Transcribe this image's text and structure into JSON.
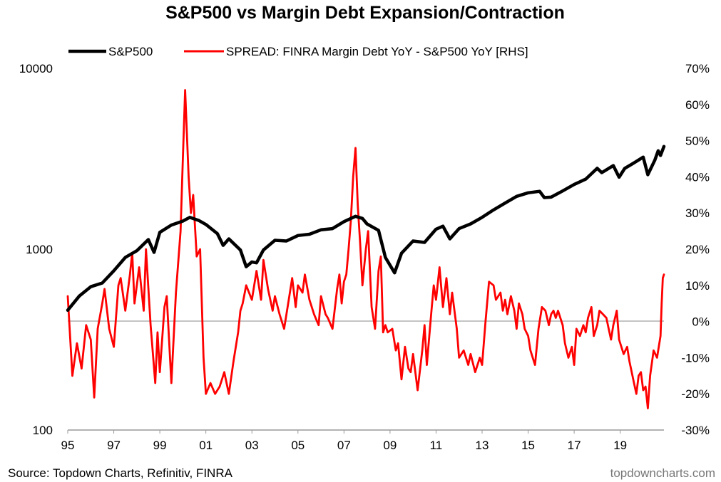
{
  "chart_data": {
    "type": "line",
    "title": "S&P500 vs Margin Debt Expansion/Contraction",
    "legend": {
      "placement": "top",
      "entries": [
        "S&P500",
        "SPREAD: FINRA Margin Debt YoY - S&P500 YoY [RHS]"
      ]
    },
    "x_axis": {
      "ticks": [
        "95",
        "97",
        "99",
        "01",
        "03",
        "05",
        "07",
        "09",
        "11",
        "13",
        "15",
        "17",
        "19"
      ],
      "range": [
        1995.0,
        2020.9
      ]
    },
    "y_left": {
      "scale": "log",
      "range": [
        100,
        10000
      ],
      "ticks": [
        "10000",
        "1000",
        "100"
      ]
    },
    "y_right": {
      "scale": "linear",
      "unit": "%",
      "range": [
        -30,
        70
      ],
      "ticks": [
        "70%",
        "60%",
        "50%",
        "40%",
        "30%",
        "20%",
        "10%",
        "0%",
        "-10%",
        "-20%",
        "-30%"
      ],
      "zero_line": true
    },
    "grid": false,
    "series": [
      {
        "name": "S&P500",
        "axis": "left",
        "color": "#000000",
        "points": [
          [
            1995.0,
            460
          ],
          [
            1995.5,
            550
          ],
          [
            1996.0,
            620
          ],
          [
            1996.5,
            650
          ],
          [
            1997.0,
            760
          ],
          [
            1997.5,
            900
          ],
          [
            1998.0,
            980
          ],
          [
            1998.5,
            1130
          ],
          [
            1998.75,
            960
          ],
          [
            1999.0,
            1240
          ],
          [
            1999.5,
            1360
          ],
          [
            2000.0,
            1430
          ],
          [
            2000.3,
            1500
          ],
          [
            2000.7,
            1440
          ],
          [
            2001.0,
            1370
          ],
          [
            2001.5,
            1220
          ],
          [
            2001.75,
            1050
          ],
          [
            2002.0,
            1140
          ],
          [
            2002.5,
            990
          ],
          [
            2002.75,
            800
          ],
          [
            2003.0,
            850
          ],
          [
            2003.2,
            840
          ],
          [
            2003.5,
            990
          ],
          [
            2004.0,
            1120
          ],
          [
            2004.5,
            1110
          ],
          [
            2005.0,
            1190
          ],
          [
            2005.5,
            1210
          ],
          [
            2006.0,
            1280
          ],
          [
            2006.5,
            1300
          ],
          [
            2007.0,
            1420
          ],
          [
            2007.5,
            1520
          ],
          [
            2007.8,
            1480
          ],
          [
            2008.0,
            1380
          ],
          [
            2008.5,
            1270
          ],
          [
            2008.8,
            900
          ],
          [
            2009.2,
            740
          ],
          [
            2009.5,
            950
          ],
          [
            2010.0,
            1110
          ],
          [
            2010.5,
            1090
          ],
          [
            2011.0,
            1290
          ],
          [
            2011.3,
            1340
          ],
          [
            2011.6,
            1140
          ],
          [
            2012.0,
            1300
          ],
          [
            2012.5,
            1380
          ],
          [
            2013.0,
            1500
          ],
          [
            2013.5,
            1650
          ],
          [
            2014.0,
            1800
          ],
          [
            2014.5,
            1960
          ],
          [
            2015.0,
            2050
          ],
          [
            2015.5,
            2090
          ],
          [
            2015.7,
            1930
          ],
          [
            2016.0,
            1940
          ],
          [
            2016.5,
            2100
          ],
          [
            2017.0,
            2280
          ],
          [
            2017.5,
            2440
          ],
          [
            2018.0,
            2800
          ],
          [
            2018.2,
            2650
          ],
          [
            2018.7,
            2900
          ],
          [
            2018.95,
            2500
          ],
          [
            2019.2,
            2800
          ],
          [
            2019.5,
            2950
          ],
          [
            2020.0,
            3230
          ],
          [
            2020.2,
            2580
          ],
          [
            2020.5,
            3100
          ],
          [
            2020.65,
            3500
          ],
          [
            2020.75,
            3300
          ],
          [
            2020.9,
            3700
          ]
        ]
      },
      {
        "name": "SPREAD: FINRA Margin Debt YoY - S&P500 YoY [RHS]",
        "axis": "right",
        "color": "#ff0000",
        "points": [
          [
            1995.0,
            7
          ],
          [
            1995.2,
            -15
          ],
          [
            1995.4,
            -6
          ],
          [
            1995.6,
            -13
          ],
          [
            1995.8,
            -1
          ],
          [
            1996.0,
            -5
          ],
          [
            1996.15,
            -21
          ],
          [
            1996.3,
            -2
          ],
          [
            1996.5,
            5
          ],
          [
            1996.6,
            9
          ],
          [
            1996.8,
            -2
          ],
          [
            1997.0,
            -7
          ],
          [
            1997.2,
            10
          ],
          [
            1997.3,
            12
          ],
          [
            1997.5,
            3
          ],
          [
            1997.7,
            13
          ],
          [
            1997.8,
            19
          ],
          [
            1997.9,
            5
          ],
          [
            1998.1,
            15
          ],
          [
            1998.3,
            3
          ],
          [
            1998.4,
            20
          ],
          [
            1998.6,
            -1
          ],
          [
            1998.8,
            -17
          ],
          [
            1998.9,
            -3
          ],
          [
            1999.0,
            -14
          ],
          [
            1999.2,
            4
          ],
          [
            1999.3,
            7
          ],
          [
            1999.5,
            -17
          ],
          [
            1999.7,
            8
          ],
          [
            1999.9,
            25
          ],
          [
            2000.0,
            45
          ],
          [
            2000.1,
            64
          ],
          [
            2000.25,
            40
          ],
          [
            2000.35,
            30
          ],
          [
            2000.45,
            35
          ],
          [
            2000.6,
            18
          ],
          [
            2000.75,
            20
          ],
          [
            2000.9,
            -10
          ],
          [
            2001.0,
            -20
          ],
          [
            2001.2,
            -17
          ],
          [
            2001.4,
            -20
          ],
          [
            2001.6,
            -18
          ],
          [
            2001.8,
            -14
          ],
          [
            2002.0,
            -20
          ],
          [
            2002.2,
            -11
          ],
          [
            2002.4,
            -3
          ],
          [
            2002.5,
            3
          ],
          [
            2002.6,
            5
          ],
          [
            2002.75,
            10
          ],
          [
            2003.0,
            6
          ],
          [
            2003.2,
            14
          ],
          [
            2003.4,
            6
          ],
          [
            2003.5,
            17
          ],
          [
            2003.7,
            9
          ],
          [
            2003.9,
            3
          ],
          [
            2004.0,
            7
          ],
          [
            2004.2,
            2
          ],
          [
            2004.4,
            -2
          ],
          [
            2004.6,
            6
          ],
          [
            2004.75,
            12
          ],
          [
            2004.9,
            4
          ],
          [
            2005.0,
            10
          ],
          [
            2005.2,
            8
          ],
          [
            2005.3,
            13
          ],
          [
            2005.5,
            6
          ],
          [
            2005.7,
            2
          ],
          [
            2005.9,
            -1
          ],
          [
            2006.0,
            7
          ],
          [
            2006.2,
            2
          ],
          [
            2006.3,
            1
          ],
          [
            2006.5,
            -2
          ],
          [
            2006.7,
            9
          ],
          [
            2006.8,
            13
          ],
          [
            2006.9,
            5
          ],
          [
            2007.0,
            11
          ],
          [
            2007.1,
            13
          ],
          [
            2007.2,
            20
          ],
          [
            2007.3,
            28
          ],
          [
            2007.4,
            40
          ],
          [
            2007.5,
            48
          ],
          [
            2007.6,
            32
          ],
          [
            2007.7,
            22
          ],
          [
            2007.8,
            10
          ],
          [
            2007.95,
            20
          ],
          [
            2008.05,
            25
          ],
          [
            2008.2,
            4
          ],
          [
            2008.35,
            -2
          ],
          [
            2008.5,
            14
          ],
          [
            2008.6,
            18
          ],
          [
            2008.7,
            -3
          ],
          [
            2008.8,
            -1
          ],
          [
            2008.9,
            -3
          ],
          [
            2009.1,
            -2
          ],
          [
            2009.25,
            -8
          ],
          [
            2009.35,
            -6
          ],
          [
            2009.5,
            -16
          ],
          [
            2009.65,
            -7
          ],
          [
            2009.8,
            -13
          ],
          [
            2009.9,
            -14
          ],
          [
            2010.0,
            -9
          ],
          [
            2010.2,
            -19
          ],
          [
            2010.4,
            -8
          ],
          [
            2010.5,
            -1
          ],
          [
            2010.6,
            -12
          ],
          [
            2010.8,
            3
          ],
          [
            2010.9,
            10
          ],
          [
            2011.0,
            6
          ],
          [
            2011.15,
            15
          ],
          [
            2011.3,
            4
          ],
          [
            2011.45,
            12
          ],
          [
            2011.6,
            2
          ],
          [
            2011.7,
            8
          ],
          [
            2011.9,
            -2
          ],
          [
            2012.0,
            -10
          ],
          [
            2012.2,
            -8
          ],
          [
            2012.4,
            -12
          ],
          [
            2012.5,
            -9
          ],
          [
            2012.7,
            -14
          ],
          [
            2012.9,
            -10
          ],
          [
            2013.0,
            -12
          ],
          [
            2013.15,
            0
          ],
          [
            2013.3,
            11
          ],
          [
            2013.5,
            10
          ],
          [
            2013.6,
            6
          ],
          [
            2013.8,
            8
          ],
          [
            2013.9,
            3
          ],
          [
            2014.0,
            6
          ],
          [
            2014.1,
            2
          ],
          [
            2014.25,
            7
          ],
          [
            2014.4,
            3
          ],
          [
            2014.5,
            -2
          ],
          [
            2014.6,
            5
          ],
          [
            2014.75,
            2
          ],
          [
            2014.85,
            -2
          ],
          [
            2015.0,
            -4
          ],
          [
            2015.1,
            -8
          ],
          [
            2015.3,
            -12
          ],
          [
            2015.45,
            -2
          ],
          [
            2015.6,
            4
          ],
          [
            2015.75,
            3
          ],
          [
            2015.9,
            -1
          ],
          [
            2016.0,
            2
          ],
          [
            2016.1,
            3
          ],
          [
            2016.2,
            1
          ],
          [
            2016.3,
            3
          ],
          [
            2016.5,
            -1
          ],
          [
            2016.6,
            -6
          ],
          [
            2016.75,
            -10
          ],
          [
            2016.9,
            -7
          ],
          [
            2017.0,
            -12
          ],
          [
            2017.1,
            -2
          ],
          [
            2017.25,
            -4
          ],
          [
            2017.4,
            -1
          ],
          [
            2017.5,
            -3
          ],
          [
            2017.6,
            1
          ],
          [
            2017.75,
            4
          ],
          [
            2017.85,
            -4
          ],
          [
            2018.0,
            -1
          ],
          [
            2018.1,
            3
          ],
          [
            2018.25,
            2
          ],
          [
            2018.4,
            1
          ],
          [
            2018.5,
            -2
          ],
          [
            2018.6,
            -5
          ],
          [
            2018.7,
            -1
          ],
          [
            2018.85,
            3
          ],
          [
            2018.95,
            -5
          ],
          [
            2019.05,
            -7
          ],
          [
            2019.15,
            -9
          ],
          [
            2019.3,
            -7
          ],
          [
            2019.4,
            -11
          ],
          [
            2019.5,
            -14
          ],
          [
            2019.6,
            -17
          ],
          [
            2019.7,
            -20
          ],
          [
            2019.8,
            -15
          ],
          [
            2019.9,
            -14
          ],
          [
            2020.0,
            -19
          ],
          [
            2020.1,
            -18
          ],
          [
            2020.2,
            -24
          ],
          [
            2020.3,
            -15
          ],
          [
            2020.45,
            -8
          ],
          [
            2020.6,
            -10
          ],
          [
            2020.75,
            -4
          ],
          [
            2020.8,
            5
          ],
          [
            2020.85,
            12
          ],
          [
            2020.9,
            13
          ]
        ]
      }
    ]
  },
  "footer": {
    "source": "Source: Topdown Charts, Refinitiv, FINRA",
    "watermark": "topdowncharts.com"
  }
}
